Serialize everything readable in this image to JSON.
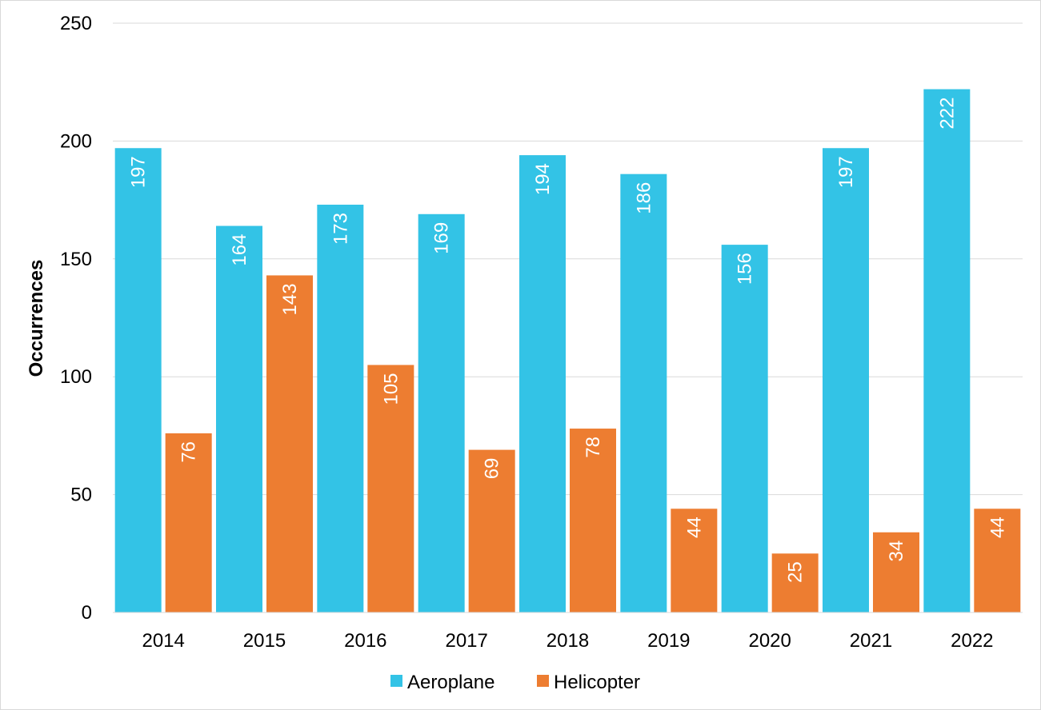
{
  "chart_data": {
    "type": "bar",
    "title": "",
    "xlabel": "",
    "ylabel": "Occurrences",
    "ylim": [
      0,
      250
    ],
    "yticks": [
      0,
      50,
      100,
      150,
      200,
      250
    ],
    "grid": true,
    "legend_position": "bottom",
    "categories": [
      "2014",
      "2015",
      "2016",
      "2017",
      "2018",
      "2019",
      "2020",
      "2021",
      "2022"
    ],
    "series": [
      {
        "name": "Aeroplane",
        "color": "#33C3E6",
        "values": [
          197,
          164,
          173,
          169,
          194,
          186,
          156,
          197,
          222
        ]
      },
      {
        "name": "Helicopter",
        "color": "#ED7D31",
        "values": [
          76,
          143,
          105,
          69,
          78,
          44,
          25,
          34,
          44
        ]
      }
    ]
  }
}
